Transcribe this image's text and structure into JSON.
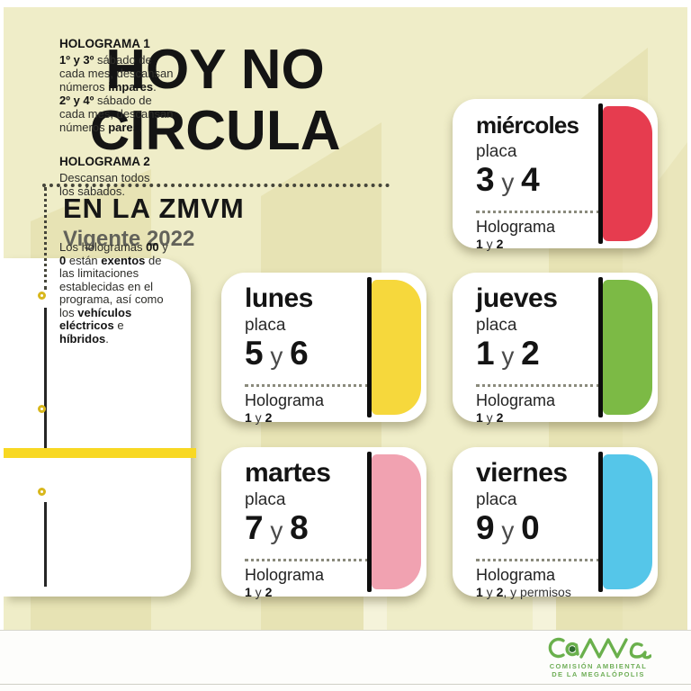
{
  "title": {
    "line1": "HOY NO",
    "line2": "CIRCULA",
    "subtitle": "EN LA ZMVM",
    "validity": "Vigente 2022"
  },
  "info_panel": {
    "sections": [
      {
        "heading": "HOLOGRAMA 1",
        "lines": [
          [
            {
              "t": "1º y 3º",
              "b": true
            },
            {
              "t": " sábado de",
              "b": false
            }
          ],
          [
            {
              "t": "cada mes, descansan",
              "b": false
            }
          ],
          [
            {
              "t": "números ",
              "b": false
            },
            {
              "t": "impares",
              "b": true
            },
            {
              "t": ".",
              "b": false
            }
          ],
          [
            {
              "t": "2º y 4º",
              "b": true
            },
            {
              "t": " sábado de",
              "b": false
            }
          ],
          [
            {
              "t": "cada mes, descansan",
              "b": false
            }
          ],
          [
            {
              "t": "números ",
              "b": false
            },
            {
              "t": "pares",
              "b": true
            },
            {
              "t": ".",
              "b": false
            }
          ]
        ]
      },
      {
        "heading": "HOLOGRAMA 2",
        "lines": [
          [
            {
              "t": "Descansan todos",
              "b": false
            }
          ],
          [
            {
              "t": "los sábados.",
              "b": false
            }
          ]
        ]
      },
      {
        "heading": "",
        "lines": [
          [
            {
              "t": "Los hologramas ",
              "b": false
            },
            {
              "t": "00",
              "b": true
            },
            {
              "t": " y",
              "b": false
            }
          ],
          [
            {
              "t": "0",
              "b": true
            },
            {
              "t": " están ",
              "b": false
            },
            {
              "t": "exentos",
              "b": true
            },
            {
              "t": " de",
              "b": false
            }
          ],
          [
            {
              "t": "las limitaciones",
              "b": false
            }
          ],
          [
            {
              "t": "establecidas en el",
              "b": false
            }
          ],
          [
            {
              "t": "programa, así como",
              "b": false
            }
          ],
          [
            {
              "t": "los ",
              "b": false
            },
            {
              "t": "vehículos",
              "b": true
            }
          ],
          [
            {
              "t": "eléctricos",
              "b": true
            },
            {
              "t": " e",
              "b": false
            }
          ],
          [
            {
              "t": "híbridos",
              "b": true
            },
            {
              "t": ".",
              "b": false
            }
          ]
        ]
      }
    ]
  },
  "cards": [
    {
      "day": "miércoles",
      "placa_label": "placa",
      "plates": [
        {
          "t": "3",
          "b": true
        },
        {
          "t": " y ",
          "b": false
        },
        {
          "t": "4",
          "b": true
        }
      ],
      "holo_label": "Holograma",
      "holo": [
        {
          "t": "1",
          "b": true
        },
        {
          "t": " y ",
          "b": false
        },
        {
          "t": "2",
          "b": true
        }
      ],
      "color": "#e63c4f"
    },
    {
      "day": "lunes",
      "placa_label": "placa",
      "plates": [
        {
          "t": "5",
          "b": true
        },
        {
          "t": " y ",
          "b": false
        },
        {
          "t": "6",
          "b": true
        }
      ],
      "holo_label": "Holograma",
      "holo": [
        {
          "t": "1",
          "b": true
        },
        {
          "t": " y ",
          "b": false
        },
        {
          "t": "2",
          "b": true
        }
      ],
      "color": "#f6d83c"
    },
    {
      "day": "jueves",
      "placa_label": "placa",
      "plates": [
        {
          "t": "1",
          "b": true
        },
        {
          "t": " y ",
          "b": false
        },
        {
          "t": "2",
          "b": true
        }
      ],
      "holo_label": "Holograma",
      "holo": [
        {
          "t": "1",
          "b": true
        },
        {
          "t": " y ",
          "b": false
        },
        {
          "t": "2",
          "b": true
        }
      ],
      "color": "#7cba45"
    },
    {
      "day": "martes",
      "placa_label": "placa",
      "plates": [
        {
          "t": "7",
          "b": true
        },
        {
          "t": " y ",
          "b": false
        },
        {
          "t": "8",
          "b": true
        }
      ],
      "holo_label": "Holograma",
      "holo": [
        {
          "t": "1",
          "b": true
        },
        {
          "t": " y ",
          "b": false
        },
        {
          "t": "2",
          "b": true
        }
      ],
      "color": "#f1a2b1"
    },
    {
      "day": "viernes",
      "placa_label": "placa",
      "plates": [
        {
          "t": "9",
          "b": true
        },
        {
          "t": " y ",
          "b": false
        },
        {
          "t": "0",
          "b": true
        }
      ],
      "holo_label": "Holograma",
      "holo": [
        {
          "t": "1",
          "b": true
        },
        {
          "t": " y ",
          "b": false
        },
        {
          "t": "2",
          "b": true
        },
        {
          "t": ", y permisos",
          "b": false
        }
      ],
      "color": "#55c6e9"
    }
  ],
  "footer": {
    "logo_text": "CAMe",
    "org_line1": "COMISIÓN AMBIENTAL",
    "org_line2": "DE LA MEGALÓPOLIS"
  },
  "colors": {
    "background": "#efedc8",
    "accent_bar": "#f8d823",
    "logo_green": "#6ab04c"
  }
}
